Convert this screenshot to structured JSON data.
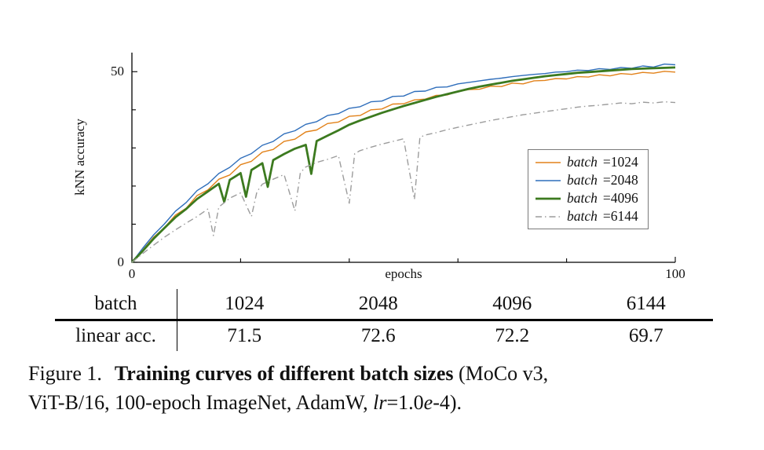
{
  "chart_data": {
    "type": "line",
    "title": "",
    "xlabel": "epochs",
    "ylabel": "kNN accuracy",
    "xlim": [
      0,
      100
    ],
    "ylim": [
      0,
      55
    ],
    "grid": false,
    "legend_position": "right-center-inside",
    "x_major_ticks": [
      {
        "v": 0,
        "label": "0"
      },
      {
        "v": 100,
        "label": "100"
      }
    ],
    "x_minor_ticks": [
      20,
      40,
      60,
      80
    ],
    "y_major_ticks": [
      {
        "v": 0,
        "label": "0"
      },
      {
        "v": 50,
        "label": "50"
      }
    ],
    "y_minor_ticks": [
      10,
      20,
      30,
      40
    ],
    "series": [
      {
        "name": "batch=1024",
        "color": "#E2821A",
        "width": 1.4,
        "dash": null,
        "points": [
          [
            0,
            0
          ],
          [
            2,
            3.2
          ],
          [
            4,
            6.6
          ],
          [
            6,
            9.1
          ],
          [
            8,
            12.4
          ],
          [
            10,
            14.2
          ],
          [
            12,
            17.5
          ],
          [
            14,
            19.0
          ],
          [
            16,
            21.8
          ],
          [
            18,
            22.9
          ],
          [
            20,
            25.6
          ],
          [
            22,
            26.5
          ],
          [
            24,
            28.9
          ],
          [
            26,
            29.6
          ],
          [
            28,
            31.7
          ],
          [
            30,
            32.3
          ],
          [
            32,
            34.2
          ],
          [
            34,
            34.7
          ],
          [
            36,
            36.4
          ],
          [
            38,
            36.8
          ],
          [
            40,
            38.3
          ],
          [
            42,
            38.5
          ],
          [
            44,
            40.0
          ],
          [
            46,
            40.2
          ],
          [
            48,
            41.5
          ],
          [
            50,
            41.6
          ],
          [
            52,
            42.6
          ],
          [
            54,
            42.8
          ],
          [
            56,
            43.8
          ],
          [
            58,
            43.9
          ],
          [
            60,
            44.8
          ],
          [
            62,
            45.3
          ],
          [
            64,
            45.4
          ],
          [
            66,
            46.2
          ],
          [
            68,
            46.1
          ],
          [
            70,
            47.0
          ],
          [
            72,
            46.8
          ],
          [
            74,
            47.6
          ],
          [
            76,
            47.7
          ],
          [
            78,
            48.2
          ],
          [
            80,
            48.1
          ],
          [
            82,
            48.7
          ],
          [
            84,
            48.6
          ],
          [
            86,
            49.2
          ],
          [
            88,
            48.9
          ],
          [
            90,
            49.5
          ],
          [
            92,
            49.3
          ],
          [
            94,
            49.8
          ],
          [
            96,
            49.6
          ],
          [
            98,
            50.1
          ],
          [
            100,
            49.9
          ]
        ]
      },
      {
        "name": "batch=2048",
        "color": "#2F6EBB",
        "width": 1.4,
        "dash": null,
        "points": [
          [
            0,
            0
          ],
          [
            2,
            3.7
          ],
          [
            4,
            7.2
          ],
          [
            6,
            10.1
          ],
          [
            8,
            13.4
          ],
          [
            10,
            15.7
          ],
          [
            12,
            18.8
          ],
          [
            14,
            20.6
          ],
          [
            16,
            23.3
          ],
          [
            18,
            24.9
          ],
          [
            20,
            27.3
          ],
          [
            22,
            28.5
          ],
          [
            24,
            30.7
          ],
          [
            26,
            31.7
          ],
          [
            28,
            33.7
          ],
          [
            30,
            34.5
          ],
          [
            32,
            36.2
          ],
          [
            34,
            36.9
          ],
          [
            36,
            38.5
          ],
          [
            38,
            39.0
          ],
          [
            40,
            40.4
          ],
          [
            42,
            40.8
          ],
          [
            44,
            42.1
          ],
          [
            46,
            42.3
          ],
          [
            48,
            43.5
          ],
          [
            50,
            43.6
          ],
          [
            52,
            44.8
          ],
          [
            54,
            44.9
          ],
          [
            56,
            45.9
          ],
          [
            58,
            46.0
          ],
          [
            60,
            46.8
          ],
          [
            62,
            47.2
          ],
          [
            64,
            47.6
          ],
          [
            66,
            48.0
          ],
          [
            68,
            48.3
          ],
          [
            70,
            48.7
          ],
          [
            72,
            49.0
          ],
          [
            74,
            49.3
          ],
          [
            76,
            49.5
          ],
          [
            78,
            49.9
          ],
          [
            80,
            50.0
          ],
          [
            82,
            50.4
          ],
          [
            84,
            50.3
          ],
          [
            86,
            50.8
          ],
          [
            88,
            50.6
          ],
          [
            90,
            51.1
          ],
          [
            92,
            50.9
          ],
          [
            94,
            51.5
          ],
          [
            96,
            51.2
          ],
          [
            98,
            52.0
          ],
          [
            100,
            51.8
          ]
        ]
      },
      {
        "name": "batch=4096",
        "color": "#3C7A1F",
        "width": 2.8,
        "dash": null,
        "points": [
          [
            0,
            0
          ],
          [
            2,
            3.0
          ],
          [
            4,
            6.2
          ],
          [
            6,
            9.0
          ],
          [
            8,
            11.8
          ],
          [
            10,
            14.0
          ],
          [
            12,
            16.6
          ],
          [
            14,
            18.6
          ],
          [
            15,
            19.6
          ],
          [
            16,
            20.6
          ],
          [
            17,
            15.8
          ],
          [
            18,
            21.6
          ],
          [
            19,
            22.5
          ],
          [
            20,
            23.4
          ],
          [
            21,
            17.2
          ],
          [
            22,
            24.2
          ],
          [
            23,
            25.1
          ],
          [
            24,
            26.0
          ],
          [
            25,
            19.8
          ],
          [
            26,
            26.8
          ],
          [
            28,
            28.4
          ],
          [
            30,
            29.8
          ],
          [
            32,
            30.8
          ],
          [
            33,
            23.2
          ],
          [
            34,
            31.8
          ],
          [
            36,
            33.2
          ],
          [
            38,
            34.6
          ],
          [
            40,
            36.1
          ],
          [
            42,
            37.2
          ],
          [
            44,
            38.2
          ],
          [
            46,
            39.2
          ],
          [
            48,
            40.1
          ],
          [
            50,
            41.0
          ],
          [
            52,
            41.8
          ],
          [
            54,
            42.6
          ],
          [
            56,
            43.4
          ],
          [
            58,
            44.1
          ],
          [
            60,
            44.8
          ],
          [
            62,
            45.5
          ],
          [
            64,
            46.1
          ],
          [
            66,
            46.6
          ],
          [
            68,
            47.1
          ],
          [
            70,
            47.6
          ],
          [
            72,
            48.0
          ],
          [
            74,
            48.4
          ],
          [
            76,
            48.8
          ],
          [
            78,
            49.1
          ],
          [
            80,
            49.4
          ],
          [
            82,
            49.7
          ],
          [
            84,
            49.9
          ],
          [
            86,
            50.1
          ],
          [
            88,
            50.3
          ],
          [
            90,
            50.5
          ],
          [
            92,
            50.7
          ],
          [
            94,
            50.8
          ],
          [
            96,
            50.9
          ],
          [
            98,
            51.0
          ],
          [
            100,
            51.1
          ]
        ]
      },
      {
        "name": "batch=6144",
        "color": "#9C9C9C",
        "width": 1.4,
        "dash": "8 4 1.5 4",
        "points": [
          [
            0,
            0
          ],
          [
            2,
            2.3
          ],
          [
            4,
            4.5
          ],
          [
            6,
            6.6
          ],
          [
            8,
            8.5
          ],
          [
            10,
            10.3
          ],
          [
            12,
            12.0
          ],
          [
            14,
            14.0
          ],
          [
            15,
            7.0
          ],
          [
            16,
            14.5
          ],
          [
            18,
            16.8
          ],
          [
            20,
            18.2
          ],
          [
            22,
            12.0
          ],
          [
            23,
            18.5
          ],
          [
            24,
            20.5
          ],
          [
            26,
            21.8
          ],
          [
            28,
            23.0
          ],
          [
            30,
            13.5
          ],
          [
            31,
            23.5
          ],
          [
            32,
            25.0
          ],
          [
            34,
            26.2
          ],
          [
            36,
            27.0
          ],
          [
            38,
            28.0
          ],
          [
            40,
            15.5
          ],
          [
            41,
            28.5
          ],
          [
            42,
            29.3
          ],
          [
            44,
            30.2
          ],
          [
            46,
            31.0
          ],
          [
            48,
            31.7
          ],
          [
            50,
            32.4
          ],
          [
            52,
            16.5
          ],
          [
            53,
            32.8
          ],
          [
            54,
            33.4
          ],
          [
            56,
            34.0
          ],
          [
            58,
            34.8
          ],
          [
            60,
            35.4
          ],
          [
            62,
            36.0
          ],
          [
            64,
            36.6
          ],
          [
            66,
            37.2
          ],
          [
            68,
            37.7
          ],
          [
            70,
            38.2
          ],
          [
            72,
            38.7
          ],
          [
            74,
            39.1
          ],
          [
            76,
            39.5
          ],
          [
            78,
            39.9
          ],
          [
            80,
            40.3
          ],
          [
            82,
            40.7
          ],
          [
            84,
            41.0
          ],
          [
            86,
            41.2
          ],
          [
            88,
            41.5
          ],
          [
            90,
            41.8
          ],
          [
            92,
            41.6
          ],
          [
            94,
            42.0
          ],
          [
            96,
            41.8
          ],
          [
            98,
            42.1
          ],
          [
            100,
            41.9
          ]
        ]
      }
    ]
  },
  "table": {
    "header_label": "batch",
    "header_values": [
      "1024",
      "2048",
      "4096",
      "6144"
    ],
    "row_label": "linear acc.",
    "row_values": [
      "71.5",
      "72.6",
      "72.2",
      "69.7"
    ]
  },
  "caption": {
    "prefix": "Figure 1.",
    "bold": "Training curves of different batch sizes",
    "line1_end": "(MoCo v3,",
    "line2_start": "ViT-B/16, 100-epoch ImageNet, AdamW, ",
    "lr_var": "lr",
    "lr_mid": "=1.0",
    "lr_e": "e",
    "lr_end": "-4)."
  }
}
